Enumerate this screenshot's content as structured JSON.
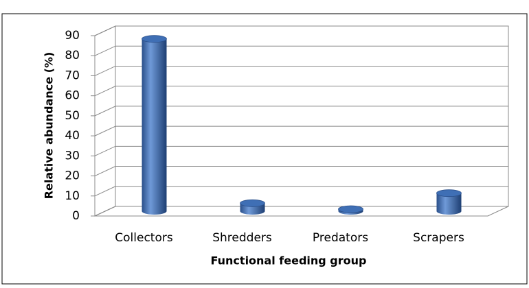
{
  "chart_data": {
    "type": "bar",
    "x_label": "Functional  feeding group",
    "y_label": "Relative abundance  (%)",
    "categories": [
      "Collectors",
      "Shredders",
      "Predators",
      "Scrapers"
    ],
    "values": [
      86,
      4,
      1,
      9
    ],
    "color": "#3f6fb5",
    "ylim": [
      0,
      90
    ],
    "yticks": [
      0,
      10,
      20,
      30,
      40,
      50,
      60,
      70,
      80,
      90
    ],
    "grid": true
  }
}
